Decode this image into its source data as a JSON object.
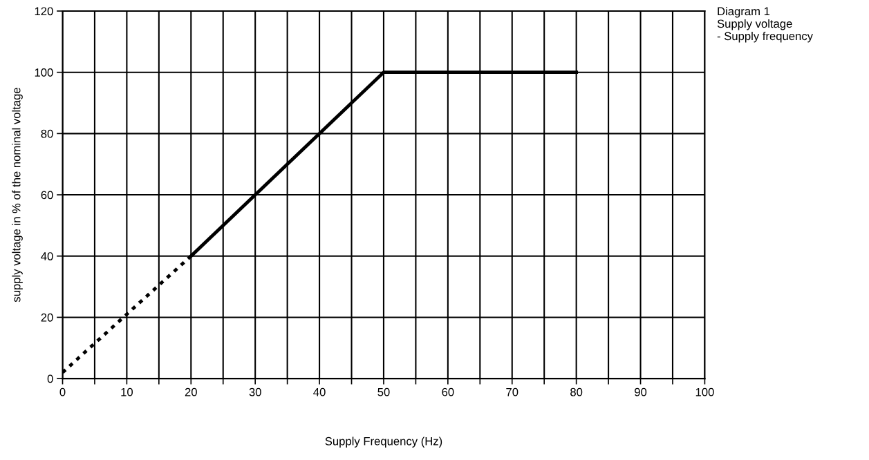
{
  "chart_data": {
    "type": "line",
    "xlabel": "Supply Frequency (Hz)",
    "ylabel": "supply voltage in % of the nominal voltage",
    "annotations": [
      "Diagram 1\nSupply voltage\n- Supply frequency"
    ],
    "series": [
      {
        "color": "#000000",
        "line_style": "dashed",
        "x": [
          0,
          20
        ],
        "values": [
          2,
          40
        ]
      },
      {
        "color": "#000000",
        "line_style": "solid",
        "x": [
          20,
          50,
          80
        ],
        "values": [
          40,
          100,
          100
        ]
      }
    ],
    "xlim": [
      0,
      100
    ],
    "ylim": [
      0,
      120
    ],
    "xticks": [
      0,
      {
        "value": 5,
        "label": null
      },
      10,
      {
        "value": 15,
        "label": null
      },
      20,
      {
        "value": 25,
        "label": null
      },
      30,
      {
        "value": 35,
        "label": null
      },
      40,
      {
        "value": 45,
        "label": null
      },
      50,
      {
        "value": 55,
        "label": null
      },
      60,
      {
        "value": 65,
        "label": null
      },
      70,
      {
        "value": 75,
        "label": null
      },
      80,
      {
        "value": 85,
        "label": null
      },
      90,
      {
        "value": 95,
        "label": null
      },
      100
    ],
    "yticks": [
      0,
      20,
      40,
      60,
      80,
      100,
      120
    ],
    "grid": true,
    "marker": "none",
    "legend": false
  }
}
